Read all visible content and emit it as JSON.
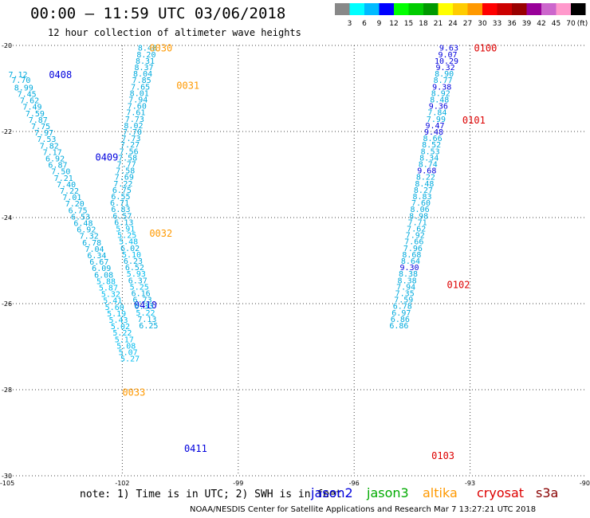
{
  "header": {
    "title": "00:00 – 11:59 UTC 03/06/2018",
    "subtitle": "12 hour collection of altimeter wave heights"
  },
  "footer": {
    "note": "note: 1) Time is in UTC; 2) SWH is in feet",
    "credit": "NOAA/NESDIS Center for Satellite Applications and Research    Mar  7 13:27:21 UTC 2018",
    "satellites": [
      {
        "name": "jason2",
        "color": "#0000dd"
      },
      {
        "name": "jason3",
        "color": "#00aa00"
      },
      {
        "name": "altika",
        "color": "#ff9900"
      },
      {
        "name": "cryosat",
        "color": "#dd0000"
      },
      {
        "name": "s3a",
        "color": "#880000"
      }
    ]
  },
  "colorbar": {
    "unit": "(ft)",
    "boundaries": [
      3,
      6,
      9,
      12,
      15,
      18,
      21,
      24,
      27,
      30,
      33,
      36,
      39,
      42,
      45,
      70
    ],
    "colors": [
      "#888888",
      "#00ffff",
      "#00bbff",
      "#0000ff",
      "#00ff00",
      "#00cc00",
      "#009900",
      "#ffff00",
      "#ffcc00",
      "#ff9900",
      "#ff0000",
      "#cc0000",
      "#990000",
      "#990099",
      "#cc66cc",
      "#ff99cc",
      "#000000"
    ]
  },
  "chart_data": {
    "type": "scatter",
    "title": "00:00 – 11:59 UTC 03/06/2018",
    "subtitle": "12 hour collection of altimeter wave heights",
    "xlim": [
      -105,
      -90
    ],
    "ylim": [
      -30,
      -20
    ],
    "xticks": [
      -105,
      -102,
      -99,
      -96,
      -93,
      -90
    ],
    "yticks": [
      -20,
      -22,
      -24,
      -26,
      -28,
      -30
    ],
    "grid": true,
    "series": [
      {
        "name": "jason2",
        "labels": [
          {
            "text": "0408",
            "x": -103.9,
            "y": -20.67
          },
          {
            "text": "0409",
            "x": -102.7,
            "y": -22.58
          },
          {
            "text": "0410",
            "x": -101.7,
            "y": -26.02
          },
          {
            "text": "0411",
            "x": -100.4,
            "y": -29.35
          }
        ],
        "points": [
          {
            "x": -104.7,
            "y": -20.67,
            "v": 7.12
          },
          {
            "x": -104.62,
            "y": -20.8,
            "v": 7.7
          },
          {
            "x": -104.55,
            "y": -20.97,
            "v": 8.99
          },
          {
            "x": -104.47,
            "y": -21.12,
            "v": 7.45
          },
          {
            "x": -104.4,
            "y": -21.27,
            "v": 7.62
          },
          {
            "x": -104.33,
            "y": -21.42,
            "v": 7.49
          },
          {
            "x": -104.26,
            "y": -21.57,
            "v": 7.59
          },
          {
            "x": -104.18,
            "y": -21.72,
            "v": 7.87
          },
          {
            "x": -104.11,
            "y": -21.87,
            "v": 7.75
          },
          {
            "x": -104.03,
            "y": -22.02,
            "v": 7.97
          },
          {
            "x": -103.96,
            "y": -22.17,
            "v": 7.53
          },
          {
            "x": -103.89,
            "y": -22.32,
            "v": 7.82
          },
          {
            "x": -103.81,
            "y": -22.47,
            "v": 7.17
          },
          {
            "x": -103.74,
            "y": -22.62,
            "v": 6.92
          },
          {
            "x": -103.67,
            "y": -22.77,
            "v": 6.87
          },
          {
            "x": -103.59,
            "y": -22.92,
            "v": 7.5
          },
          {
            "x": -103.52,
            "y": -23.07,
            "v": 7.21
          },
          {
            "x": -103.45,
            "y": -23.22,
            "v": 7.4
          },
          {
            "x": -103.37,
            "y": -23.37,
            "v": 7.22
          },
          {
            "x": -103.3,
            "y": -23.52,
            "v": 7.01
          },
          {
            "x": -103.23,
            "y": -23.67,
            "v": 7.2
          },
          {
            "x": -103.15,
            "y": -23.82,
            "v": 6.75
          },
          {
            "x": -103.08,
            "y": -23.97,
            "v": 6.53
          },
          {
            "x": -103.01,
            "y": -24.12,
            "v": 6.48
          },
          {
            "x": -102.93,
            "y": -24.27,
            "v": 6.92
          },
          {
            "x": -102.86,
            "y": -24.42,
            "v": 7.32
          },
          {
            "x": -102.79,
            "y": -24.57,
            "v": 6.78
          },
          {
            "x": -102.72,
            "y": -24.72,
            "v": 7.04
          },
          {
            "x": -102.66,
            "y": -24.87,
            "v": 6.34
          },
          {
            "x": -102.6,
            "y": -25.02,
            "v": 6.67
          },
          {
            "x": -102.54,
            "y": -25.17,
            "v": 6.09
          },
          {
            "x": -102.48,
            "y": -25.32,
            "v": 6.08
          },
          {
            "x": -102.42,
            "y": -25.47,
            "v": 5.88
          },
          {
            "x": -102.36,
            "y": -25.62,
            "v": 5.87
          },
          {
            "x": -102.3,
            "y": -25.77,
            "v": 5.32
          },
          {
            "x": -102.25,
            "y": -25.92,
            "v": 5.41
          },
          {
            "x": -102.2,
            "y": -26.07,
            "v": 5.6
          },
          {
            "x": -102.15,
            "y": -26.22,
            "v": 5.19
          },
          {
            "x": -102.1,
            "y": -26.37,
            "v": 5.43
          },
          {
            "x": -102.05,
            "y": -26.52,
            "v": 5.02
          },
          {
            "x": -102.0,
            "y": -26.67,
            "v": 5.22
          },
          {
            "x": -101.95,
            "y": -26.82,
            "v": 5.17
          },
          {
            "x": -101.9,
            "y": -26.97,
            "v": 5.08
          },
          {
            "x": -101.85,
            "y": -27.12,
            "v": 5.07
          },
          {
            "x": -101.8,
            "y": -27.27,
            "v": 5.27
          }
        ]
      },
      {
        "name": "altika",
        "labels": [
          {
            "text": "0030",
            "x": -101.3,
            "y": -20.05
          },
          {
            "text": "0031",
            "x": -100.6,
            "y": -20.92
          },
          {
            "text": "0032",
            "x": -101.3,
            "y": -24.35
          },
          {
            "text": "0033",
            "x": -102.0,
            "y": -28.05
          }
        ],
        "points": [
          {
            "x": -101.35,
            "y": -20.05,
            "v": 8.48
          },
          {
            "x": -101.38,
            "y": -20.2,
            "v": 8.2
          },
          {
            "x": -101.41,
            "y": -20.35,
            "v": 8.31
          },
          {
            "x": -101.44,
            "y": -20.5,
            "v": 8.37
          },
          {
            "x": -101.47,
            "y": -20.65,
            "v": 8.04
          },
          {
            "x": -101.5,
            "y": -20.8,
            "v": 7.85
          },
          {
            "x": -101.53,
            "y": -20.95,
            "v": 7.65
          },
          {
            "x": -101.56,
            "y": -21.1,
            "v": 8.01
          },
          {
            "x": -101.59,
            "y": -21.25,
            "v": 7.94
          },
          {
            "x": -101.62,
            "y": -21.4,
            "v": 7.6
          },
          {
            "x": -101.65,
            "y": -21.55,
            "v": 7.61
          },
          {
            "x": -101.68,
            "y": -21.7,
            "v": 7.73
          },
          {
            "x": -101.71,
            "y": -21.85,
            "v": 8.02
          },
          {
            "x": -101.74,
            "y": -22.0,
            "v": 7.7
          },
          {
            "x": -101.77,
            "y": -22.15,
            "v": 7.73
          },
          {
            "x": -101.8,
            "y": -22.3,
            "v": 7.27
          },
          {
            "x": -101.83,
            "y": -22.45,
            "v": 7.56
          },
          {
            "x": -101.86,
            "y": -22.6,
            "v": 7.58
          },
          {
            "x": -101.89,
            "y": -22.75,
            "v": 7.77
          },
          {
            "x": -101.92,
            "y": -22.9,
            "v": 7.58
          },
          {
            "x": -101.95,
            "y": -23.05,
            "v": 7.69
          },
          {
            "x": -101.98,
            "y": -23.2,
            "v": 7.22
          },
          {
            "x": -102.01,
            "y": -23.35,
            "v": 6.75
          },
          {
            "x": -102.04,
            "y": -23.5,
            "v": 6.55
          },
          {
            "x": -102.07,
            "y": -23.65,
            "v": 6.71
          },
          {
            "x": -102.04,
            "y": -23.8,
            "v": 6.83
          },
          {
            "x": -102.0,
            "y": -23.95,
            "v": 6.57
          },
          {
            "x": -101.96,
            "y": -24.1,
            "v": 6.13
          },
          {
            "x": -101.92,
            "y": -24.25,
            "v": 5.91
          },
          {
            "x": -101.88,
            "y": -24.4,
            "v": 5.25
          },
          {
            "x": -101.84,
            "y": -24.55,
            "v": 5.48
          },
          {
            "x": -101.8,
            "y": -24.7,
            "v": 6.02
          },
          {
            "x": -101.76,
            "y": -24.85,
            "v": 5.1
          },
          {
            "x": -101.72,
            "y": -25.0,
            "v": 6.23
          },
          {
            "x": -101.68,
            "y": -25.15,
            "v": 6.52
          },
          {
            "x": -101.64,
            "y": -25.3,
            "v": 5.93
          },
          {
            "x": -101.6,
            "y": -25.45,
            "v": 6.37
          },
          {
            "x": -101.56,
            "y": -25.6,
            "v": 5.25
          },
          {
            "x": -101.52,
            "y": -25.75,
            "v": 6.16
          },
          {
            "x": -101.48,
            "y": -25.9,
            "v": 6.73
          },
          {
            "x": -101.44,
            "y": -26.05,
            "v": 6.33
          },
          {
            "x": -101.4,
            "y": -26.2,
            "v": 5.22
          },
          {
            "x": -101.36,
            "y": -26.35,
            "v": 7.13
          },
          {
            "x": -101.32,
            "y": -26.5,
            "v": 6.25
          }
        ]
      },
      {
        "name": "cryosat",
        "labels": [
          {
            "text": "0100",
            "x": -92.9,
            "y": -20.05
          },
          {
            "text": "0101",
            "x": -93.2,
            "y": -21.72
          },
          {
            "text": "0102",
            "x": -93.6,
            "y": -25.55
          },
          {
            "text": "0103",
            "x": -94.0,
            "y": -29.52
          }
        ],
        "points": [
          {
            "x": -93.55,
            "y": -20.05,
            "v": 9.63
          },
          {
            "x": -93.58,
            "y": -20.2,
            "v": 9.07
          },
          {
            "x": -93.61,
            "y": -20.35,
            "v": 10.29
          },
          {
            "x": -93.64,
            "y": -20.5,
            "v": 9.32
          },
          {
            "x": -93.67,
            "y": -20.65,
            "v": 8.9
          },
          {
            "x": -93.7,
            "y": -20.8,
            "v": 8.77
          },
          {
            "x": -93.73,
            "y": -20.95,
            "v": 9.38
          },
          {
            "x": -93.76,
            "y": -21.1,
            "v": 8.92
          },
          {
            "x": -93.79,
            "y": -21.25,
            "v": 8.48
          },
          {
            "x": -93.82,
            "y": -21.4,
            "v": 9.36
          },
          {
            "x": -93.85,
            "y": -21.55,
            "v": 7.84
          },
          {
            "x": -93.88,
            "y": -21.7,
            "v": 7.99
          },
          {
            "x": -93.91,
            "y": -21.85,
            "v": 9.47
          },
          {
            "x": -93.94,
            "y": -22.0,
            "v": 9.48
          },
          {
            "x": -93.97,
            "y": -22.15,
            "v": 8.66
          },
          {
            "x": -94.0,
            "y": -22.3,
            "v": 8.52
          },
          {
            "x": -94.03,
            "y": -22.45,
            "v": 8.53
          },
          {
            "x": -94.06,
            "y": -22.6,
            "v": 8.34
          },
          {
            "x": -94.09,
            "y": -22.75,
            "v": 8.74
          },
          {
            "x": -94.12,
            "y": -22.9,
            "v": 9.68
          },
          {
            "x": -94.15,
            "y": -23.05,
            "v": 8.22
          },
          {
            "x": -94.18,
            "y": -23.2,
            "v": 8.48
          },
          {
            "x": -94.21,
            "y": -23.35,
            "v": 8.27
          },
          {
            "x": -94.24,
            "y": -23.5,
            "v": 8.83
          },
          {
            "x": -94.27,
            "y": -23.65,
            "v": 7.6
          },
          {
            "x": -94.3,
            "y": -23.8,
            "v": 8.06
          },
          {
            "x": -94.33,
            "y": -23.95,
            "v": 8.98
          },
          {
            "x": -94.36,
            "y": -24.1,
            "v": 7.71
          },
          {
            "x": -94.39,
            "y": -24.25,
            "v": 7.62
          },
          {
            "x": -94.42,
            "y": -24.4,
            "v": 7.92
          },
          {
            "x": -94.45,
            "y": -24.55,
            "v": 7.66
          },
          {
            "x": -94.48,
            "y": -24.7,
            "v": 7.96
          },
          {
            "x": -94.51,
            "y": -24.85,
            "v": 8.68
          },
          {
            "x": -94.54,
            "y": -25.0,
            "v": 8.64
          },
          {
            "x": -94.57,
            "y": -25.15,
            "v": 9.3
          },
          {
            "x": -94.6,
            "y": -25.3,
            "v": 8.38
          },
          {
            "x": -94.63,
            "y": -25.45,
            "v": 8.38
          },
          {
            "x": -94.66,
            "y": -25.6,
            "v": 7.94
          },
          {
            "x": -94.69,
            "y": -25.75,
            "v": 7.35
          },
          {
            "x": -94.72,
            "y": -25.9,
            "v": 7.59
          },
          {
            "x": -94.75,
            "y": -26.05,
            "v": 6.78
          },
          {
            "x": -94.78,
            "y": -26.2,
            "v": 6.97
          },
          {
            "x": -94.81,
            "y": -26.35,
            "v": 6.86
          },
          {
            "x": -94.84,
            "y": -26.5,
            "v": 6.86
          }
        ]
      }
    ]
  }
}
